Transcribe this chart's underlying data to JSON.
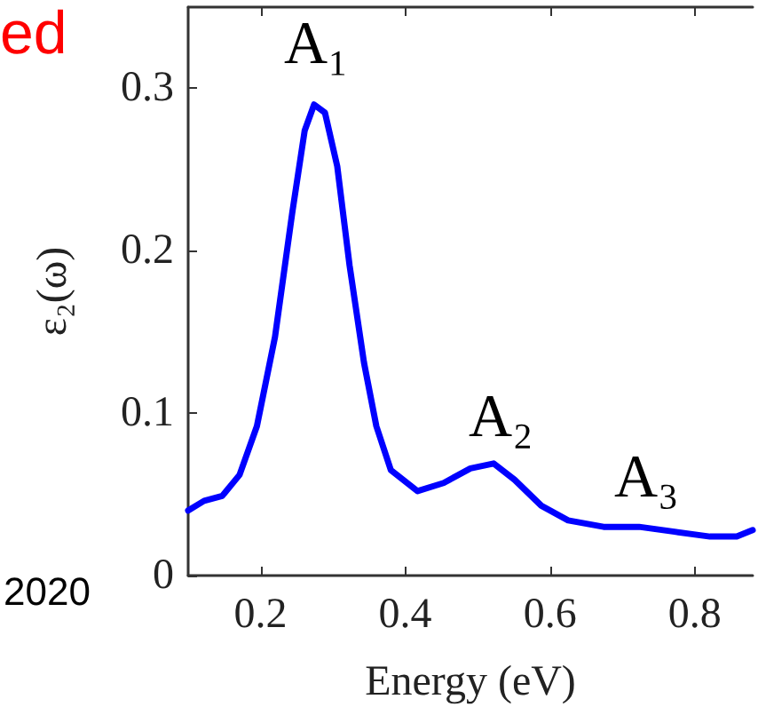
{
  "chart_data": {
    "type": "line",
    "xlabel": "Energy (eV)",
    "ylabel": "ε₂(ω)",
    "xlim": [
      0.1,
      0.88
    ],
    "xticks": [
      0.2,
      0.4,
      0.6,
      0.8
    ],
    "ylim": [
      0,
      0.35
    ],
    "yticks": [
      0,
      0.1,
      0.2,
      0.3
    ],
    "x": [
      0.1,
      0.122,
      0.147,
      0.171,
      0.195,
      0.22,
      0.244,
      0.261,
      0.274,
      0.289,
      0.306,
      0.323,
      0.343,
      0.36,
      0.38,
      0.417,
      0.453,
      0.49,
      0.522,
      0.551,
      0.588,
      0.625,
      0.674,
      0.723,
      0.772,
      0.821,
      0.858,
      0.88
    ],
    "series": [
      {
        "color": "#0000ff",
        "values": [
          0.04,
          0.046,
          0.049,
          0.062,
          0.092,
          0.147,
          0.224,
          0.274,
          0.29,
          0.285,
          0.252,
          0.191,
          0.131,
          0.092,
          0.065,
          0.052,
          0.057,
          0.066,
          0.069,
          0.059,
          0.043,
          0.034,
          0.03,
          0.03,
          0.027,
          0.024,
          0.024,
          0.028
        ]
      }
    ],
    "marker": "none",
    "line_style": "solid",
    "grid": false,
    "annotations": [
      "A₁",
      "A₂",
      "A₃",
      "ed",
      "2020"
    ]
  }
}
